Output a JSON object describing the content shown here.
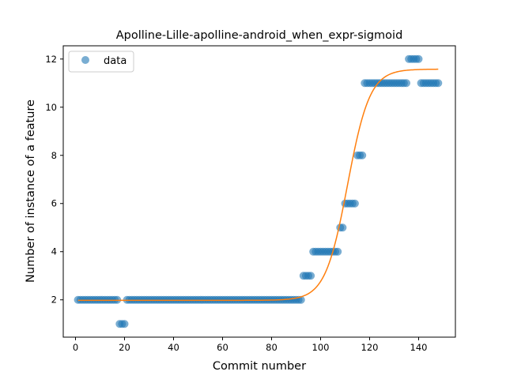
{
  "chart_data": {
    "type": "scatter",
    "title": "Apolline-Lille-apolline-android_when_expr-sigmoid",
    "xlabel": "Commit number",
    "ylabel": "Number of instance of a feature",
    "xlim": [
      -5,
      155
    ],
    "ylim": [
      0.45,
      12.55
    ],
    "xticks": [
      0,
      20,
      40,
      60,
      80,
      100,
      120,
      140
    ],
    "yticks": [
      2,
      4,
      6,
      8,
      10,
      12
    ],
    "grid": false,
    "legend": {
      "position": "top-left",
      "entries": [
        "data"
      ]
    },
    "colors": {
      "data": "#1f77b4",
      "fit": "#ff7f0e"
    },
    "series": [
      {
        "name": "data",
        "kind": "points",
        "points": [
          [
            1,
            2
          ],
          [
            2,
            2
          ],
          [
            3,
            2
          ],
          [
            4,
            2
          ],
          [
            5,
            2
          ],
          [
            6,
            2
          ],
          [
            7,
            2
          ],
          [
            8,
            2
          ],
          [
            9,
            2
          ],
          [
            10,
            2
          ],
          [
            11,
            2
          ],
          [
            12,
            2
          ],
          [
            13,
            2
          ],
          [
            14,
            2
          ],
          [
            15,
            2
          ],
          [
            16,
            2
          ],
          [
            17,
            2
          ],
          [
            18,
            1
          ],
          [
            19,
            1
          ],
          [
            20,
            1
          ],
          [
            21,
            2
          ],
          [
            22,
            2
          ],
          [
            23,
            2
          ],
          [
            24,
            2
          ],
          [
            25,
            2
          ],
          [
            26,
            2
          ],
          [
            27,
            2
          ],
          [
            28,
            2
          ],
          [
            29,
            2
          ],
          [
            30,
            2
          ],
          [
            31,
            2
          ],
          [
            32,
            2
          ],
          [
            33,
            2
          ],
          [
            34,
            2
          ],
          [
            35,
            2
          ],
          [
            36,
            2
          ],
          [
            37,
            2
          ],
          [
            38,
            2
          ],
          [
            39,
            2
          ],
          [
            40,
            2
          ],
          [
            41,
            2
          ],
          [
            42,
            2
          ],
          [
            43,
            2
          ],
          [
            44,
            2
          ],
          [
            45,
            2
          ],
          [
            46,
            2
          ],
          [
            47,
            2
          ],
          [
            48,
            2
          ],
          [
            49,
            2
          ],
          [
            50,
            2
          ],
          [
            51,
            2
          ],
          [
            52,
            2
          ],
          [
            53,
            2
          ],
          [
            54,
            2
          ],
          [
            55,
            2
          ],
          [
            56,
            2
          ],
          [
            57,
            2
          ],
          [
            58,
            2
          ],
          [
            59,
            2
          ],
          [
            60,
            2
          ],
          [
            61,
            2
          ],
          [
            62,
            2
          ],
          [
            63,
            2
          ],
          [
            64,
            2
          ],
          [
            65,
            2
          ],
          [
            66,
            2
          ],
          [
            67,
            2
          ],
          [
            68,
            2
          ],
          [
            69,
            2
          ],
          [
            70,
            2
          ],
          [
            71,
            2
          ],
          [
            72,
            2
          ],
          [
            73,
            2
          ],
          [
            74,
            2
          ],
          [
            75,
            2
          ],
          [
            76,
            2
          ],
          [
            77,
            2
          ],
          [
            78,
            2
          ],
          [
            79,
            2
          ],
          [
            80,
            2
          ],
          [
            81,
            2
          ],
          [
            82,
            2
          ],
          [
            83,
            2
          ],
          [
            84,
            2
          ],
          [
            85,
            2
          ],
          [
            86,
            2
          ],
          [
            87,
            2
          ],
          [
            88,
            2
          ],
          [
            89,
            2
          ],
          [
            90,
            2
          ],
          [
            91,
            2
          ],
          [
            92,
            2
          ],
          [
            93,
            3
          ],
          [
            94,
            3
          ],
          [
            95,
            3
          ],
          [
            96,
            3
          ],
          [
            97,
            4
          ],
          [
            98,
            4
          ],
          [
            99,
            4
          ],
          [
            100,
            4
          ],
          [
            101,
            4
          ],
          [
            102,
            4
          ],
          [
            103,
            4
          ],
          [
            104,
            4
          ],
          [
            105,
            4
          ],
          [
            106,
            4
          ],
          [
            107,
            4
          ],
          [
            108,
            5
          ],
          [
            109,
            5
          ],
          [
            110,
            6
          ],
          [
            111,
            6
          ],
          [
            112,
            6
          ],
          [
            113,
            6
          ],
          [
            114,
            6
          ],
          [
            115,
            8
          ],
          [
            116,
            8
          ],
          [
            117,
            8
          ],
          [
            118,
            11
          ],
          [
            119,
            11
          ],
          [
            120,
            11
          ],
          [
            121,
            11
          ],
          [
            122,
            11
          ],
          [
            123,
            11
          ],
          [
            124,
            11
          ],
          [
            125,
            11
          ],
          [
            126,
            11
          ],
          [
            127,
            11
          ],
          [
            128,
            11
          ],
          [
            129,
            11
          ],
          [
            130,
            11
          ],
          [
            131,
            11
          ],
          [
            132,
            11
          ],
          [
            133,
            11
          ],
          [
            134,
            11
          ],
          [
            135,
            11
          ],
          [
            136,
            12
          ],
          [
            137,
            12
          ],
          [
            138,
            12
          ],
          [
            139,
            12
          ],
          [
            140,
            12
          ],
          [
            141,
            11
          ],
          [
            142,
            11
          ],
          [
            143,
            11
          ],
          [
            144,
            11
          ],
          [
            145,
            11
          ],
          [
            146,
            11
          ],
          [
            147,
            11
          ],
          [
            148,
            11
          ]
        ]
      },
      {
        "name": "",
        "kind": "sigmoid-fit",
        "params": {
          "L": 9.6,
          "x0": 111,
          "k": 0.22,
          "b": 1.98
        },
        "x_range": [
          1,
          148
        ]
      }
    ]
  }
}
